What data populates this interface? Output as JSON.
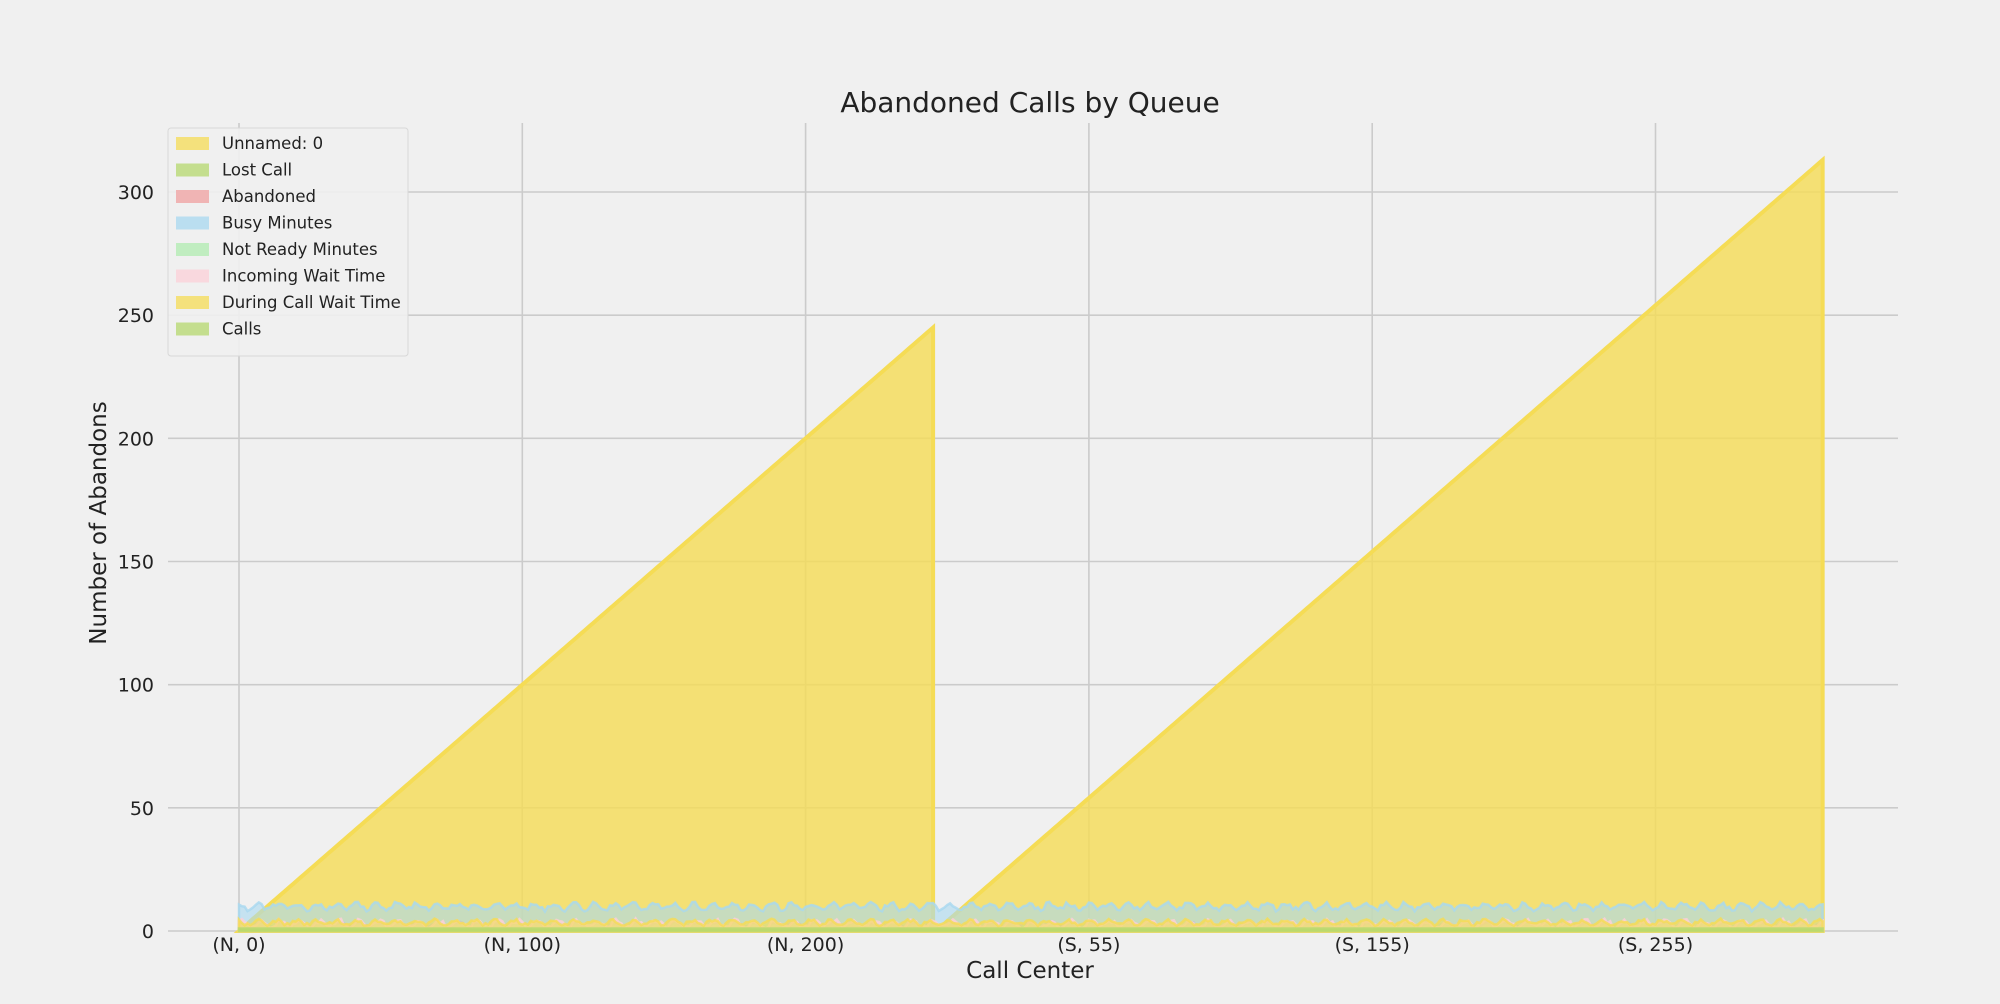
{
  "chart_data": {
    "type": "area",
    "title": "Abandoned Calls by Queue",
    "xlabel": "Call Center",
    "ylabel": "Number of Abandons",
    "ylim": [
      0,
      328
    ],
    "x_ticks": [
      {
        "label": "(N, 0)",
        "index": 0
      },
      {
        "label": "(N, 100)",
        "index": 100
      },
      {
        "label": "(N, 200)",
        "index": 200
      },
      {
        "label": "(S, 55)",
        "index": 300
      },
      {
        "label": "(S, 155)",
        "index": 400
      },
      {
        "label": "(S, 255)",
        "index": 500
      }
    ],
    "y_ticks": [
      0,
      50,
      100,
      150,
      200,
      250,
      300
    ],
    "x_groups": [
      {
        "name": "N",
        "start": 0,
        "end": 245
      },
      {
        "name": "S",
        "start": 0,
        "end": 313
      }
    ],
    "grid": true,
    "legend_position": "top-left",
    "series": [
      {
        "name": "Unnamed: 0",
        "color": "#f5dc55",
        "pattern": "row_index",
        "typical": [
          0,
          313
        ]
      },
      {
        "name": "Lost Call",
        "color": "#b5d86e",
        "pattern": "noise",
        "typical": [
          1,
          3
        ]
      },
      {
        "name": "Abandoned",
        "color": "#f0a0a0",
        "pattern": "noise",
        "typical": [
          1,
          4
        ]
      },
      {
        "name": "Busy Minutes",
        "color": "#a8d8f0",
        "pattern": "noise",
        "typical": [
          8,
          12
        ]
      },
      {
        "name": "Not Ready Minutes",
        "color": "#b0ecb0",
        "pattern": "noise",
        "typical": [
          1,
          3
        ]
      },
      {
        "name": "Incoming Wait Time",
        "color": "#fcd0d8",
        "pattern": "noise",
        "typical": [
          1,
          5
        ]
      },
      {
        "name": "During Call Wait Time",
        "color": "#f5dc55",
        "pattern": "noise",
        "typical": [
          2,
          5
        ]
      },
      {
        "name": "Calls",
        "color": "#b5d86e",
        "pattern": "constant",
        "typical": [
          1,
          1
        ]
      }
    ]
  }
}
